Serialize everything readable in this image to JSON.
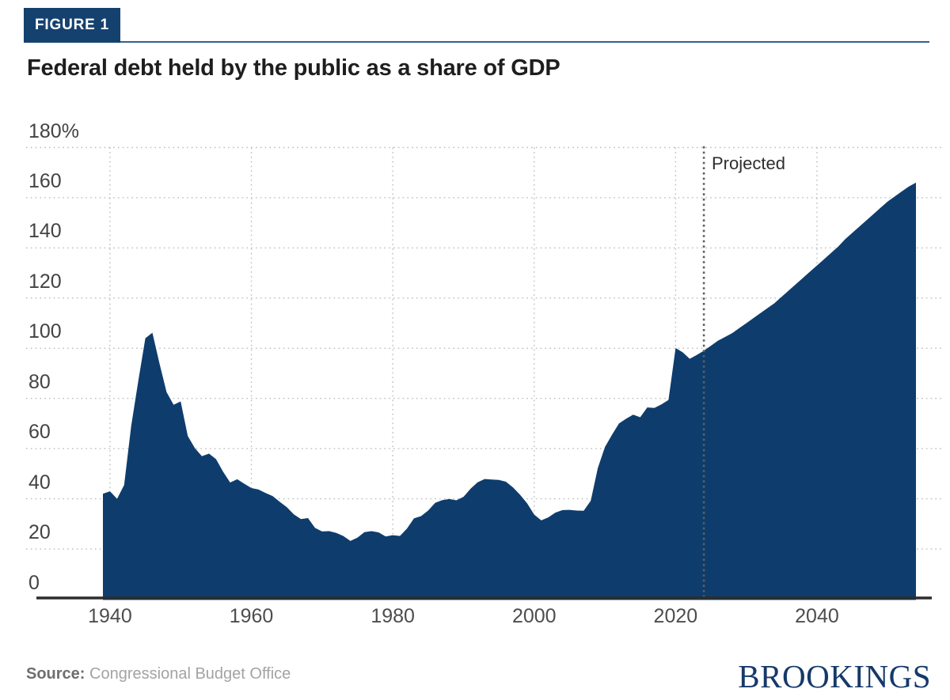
{
  "figure_label": "FIGURE 1",
  "title": "Federal debt held by the public as a share of GDP",
  "source": {
    "label": "Source:",
    "text": "Congressional Budget Office"
  },
  "branding": "BROOKINGS",
  "chart_data": {
    "type": "area",
    "title": "Federal debt held by the public as a share of GDP",
    "xlabel": "",
    "ylabel": "",
    "y_unit": "%",
    "xlim": [
      1939,
      2054
    ],
    "ylim": [
      0,
      180
    ],
    "grid": "dotted",
    "legend_position": "none",
    "projected_label": "Projected",
    "projected_start": 2024,
    "fill_color": "#0e3d6d",
    "x_ticks": [
      {
        "v": 1940,
        "label": "1940"
      },
      {
        "v": 1960,
        "label": "1960"
      },
      {
        "v": 1980,
        "label": "1980"
      },
      {
        "v": 2000,
        "label": "2000"
      },
      {
        "v": 2020,
        "label": "2020"
      },
      {
        "v": 2040,
        "label": "2040"
      }
    ],
    "y_ticks": [
      {
        "v": 0,
        "label": "0"
      },
      {
        "v": 20,
        "label": "20"
      },
      {
        "v": 40,
        "label": "40"
      },
      {
        "v": 60,
        "label": "60"
      },
      {
        "v": 80,
        "label": "80"
      },
      {
        "v": 100,
        "label": "100"
      },
      {
        "v": 120,
        "label": "120"
      },
      {
        "v": 140,
        "label": "140"
      },
      {
        "v": 160,
        "label": "160"
      },
      {
        "v": 180,
        "label": "180%"
      }
    ],
    "series": [
      {
        "name": "Federal debt held by the public (% of GDP)",
        "points": [
          [
            1939,
            42.0
          ],
          [
            1940,
            43.0
          ],
          [
            1941,
            40.0
          ],
          [
            1942,
            45.5
          ],
          [
            1943,
            69.0
          ],
          [
            1944,
            87.0
          ],
          [
            1945,
            104.0
          ],
          [
            1946,
            106.2
          ],
          [
            1947,
            94.0
          ],
          [
            1948,
            82.5
          ],
          [
            1949,
            77.5
          ],
          [
            1950,
            78.8
          ],
          [
            1951,
            65.0
          ],
          [
            1952,
            60.2
          ],
          [
            1953,
            57.0
          ],
          [
            1954,
            58.0
          ],
          [
            1955,
            55.8
          ],
          [
            1956,
            50.8
          ],
          [
            1957,
            46.5
          ],
          [
            1958,
            47.8
          ],
          [
            1959,
            46.0
          ],
          [
            1960,
            44.3
          ],
          [
            1961,
            43.7
          ],
          [
            1962,
            42.3
          ],
          [
            1963,
            41.1
          ],
          [
            1964,
            38.8
          ],
          [
            1965,
            36.7
          ],
          [
            1966,
            33.8
          ],
          [
            1967,
            31.9
          ],
          [
            1968,
            32.3
          ],
          [
            1969,
            28.4
          ],
          [
            1970,
            27.0
          ],
          [
            1971,
            27.1
          ],
          [
            1972,
            26.4
          ],
          [
            1973,
            25.2
          ],
          [
            1974,
            23.2
          ],
          [
            1975,
            24.5
          ],
          [
            1976,
            26.7
          ],
          [
            1977,
            27.1
          ],
          [
            1978,
            26.6
          ],
          [
            1979,
            25.0
          ],
          [
            1980,
            25.5
          ],
          [
            1981,
            25.2
          ],
          [
            1982,
            28.1
          ],
          [
            1983,
            32.2
          ],
          [
            1984,
            33.1
          ],
          [
            1985,
            35.3
          ],
          [
            1986,
            38.4
          ],
          [
            1987,
            39.5
          ],
          [
            1988,
            39.9
          ],
          [
            1989,
            39.4
          ],
          [
            1990,
            40.8
          ],
          [
            1991,
            44.0
          ],
          [
            1992,
            46.6
          ],
          [
            1993,
            47.9
          ],
          [
            1994,
            47.7
          ],
          [
            1995,
            47.5
          ],
          [
            1996,
            46.8
          ],
          [
            1997,
            44.5
          ],
          [
            1998,
            41.6
          ],
          [
            1999,
            38.2
          ],
          [
            2000,
            33.7
          ],
          [
            2001,
            31.4
          ],
          [
            2002,
            32.6
          ],
          [
            2003,
            34.5
          ],
          [
            2004,
            35.5
          ],
          [
            2005,
            35.6
          ],
          [
            2006,
            35.3
          ],
          [
            2007,
            35.2
          ],
          [
            2008,
            39.2
          ],
          [
            2009,
            52.2
          ],
          [
            2010,
            60.6
          ],
          [
            2011,
            65.5
          ],
          [
            2012,
            70.0
          ],
          [
            2013,
            71.9
          ],
          [
            2014,
            73.5
          ],
          [
            2015,
            72.5
          ],
          [
            2016,
            76.4
          ],
          [
            2017,
            76.2
          ],
          [
            2018,
            77.6
          ],
          [
            2019,
            79.4
          ],
          [
            2020,
            100.1
          ],
          [
            2021,
            98.4
          ],
          [
            2022,
            95.8
          ],
          [
            2023,
            97.3
          ],
          [
            2024,
            99.0
          ],
          [
            2025,
            101.0
          ],
          [
            2026,
            103.0
          ],
          [
            2027,
            104.5
          ],
          [
            2028,
            106.0
          ],
          [
            2029,
            108.0
          ],
          [
            2030,
            110.0
          ],
          [
            2031,
            112.0
          ],
          [
            2032,
            114.0
          ],
          [
            2033,
            116.0
          ],
          [
            2034,
            118.0
          ],
          [
            2035,
            120.5
          ],
          [
            2036,
            123.0
          ],
          [
            2037,
            125.5
          ],
          [
            2038,
            128.0
          ],
          [
            2039,
            130.5
          ],
          [
            2040,
            133.0
          ],
          [
            2041,
            135.5
          ],
          [
            2042,
            138.0
          ],
          [
            2043,
            140.5
          ],
          [
            2044,
            143.5
          ],
          [
            2045,
            146.0
          ],
          [
            2046,
            148.5
          ],
          [
            2047,
            151.0
          ],
          [
            2048,
            153.5
          ],
          [
            2049,
            156.0
          ],
          [
            2050,
            158.5
          ],
          [
            2051,
            160.5
          ],
          [
            2052,
            162.5
          ],
          [
            2053,
            164.5
          ],
          [
            2054,
            166.0
          ]
        ]
      }
    ]
  }
}
